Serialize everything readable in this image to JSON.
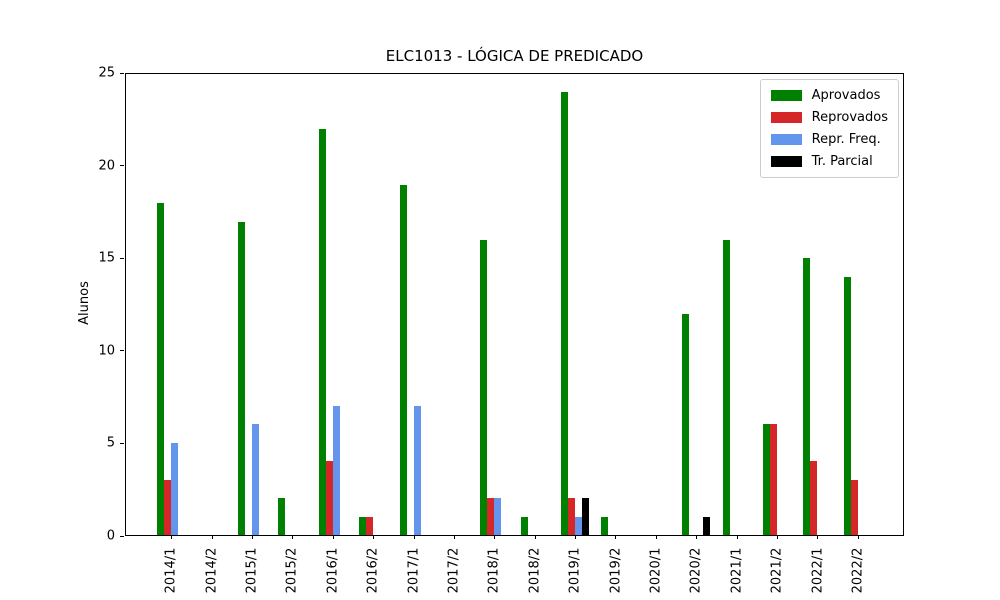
{
  "chart_data": {
    "type": "bar",
    "title": "ELC1013 - LÓGICA DE PREDICADO",
    "xlabel": "",
    "ylabel": "Alunos",
    "ylim": [
      0,
      25
    ],
    "yticks": [
      0,
      5,
      10,
      15,
      20,
      25
    ],
    "grid": false,
    "legend_position": "upper right",
    "categories": [
      "2014/1",
      "2014/2",
      "2015/1",
      "2015/2",
      "2016/1",
      "2016/2",
      "2017/1",
      "2017/2",
      "2018/1",
      "2018/2",
      "2019/1",
      "2019/2",
      "2020/1",
      "2020/2",
      "2021/1",
      "2021/2",
      "2022/1",
      "2022/2"
    ],
    "series": [
      {
        "name": "Aprovados",
        "color": "#008000",
        "values": [
          18,
          0,
          17,
          2,
          22,
          1,
          19,
          0,
          16,
          1,
          24,
          1,
          0,
          12,
          16,
          6,
          15,
          14
        ]
      },
      {
        "name": "Reprovados",
        "color": "#d62728",
        "values": [
          3,
          0,
          0,
          0,
          4,
          1,
          0,
          0,
          2,
          0,
          2,
          0,
          0,
          0,
          0,
          6,
          4,
          3
        ]
      },
      {
        "name": "Repr. Freq.",
        "color": "#6495ed",
        "values": [
          5,
          0,
          6,
          0,
          7,
          0,
          7,
          0,
          2,
          0,
          1,
          0,
          0,
          0,
          0,
          0,
          0,
          0
        ]
      },
      {
        "name": "Tr. Parcial",
        "color": "#000000",
        "values": [
          0,
          0,
          0,
          0,
          0,
          0,
          0,
          0,
          0,
          0,
          2,
          0,
          0,
          1,
          0,
          0,
          0,
          0
        ]
      }
    ]
  }
}
